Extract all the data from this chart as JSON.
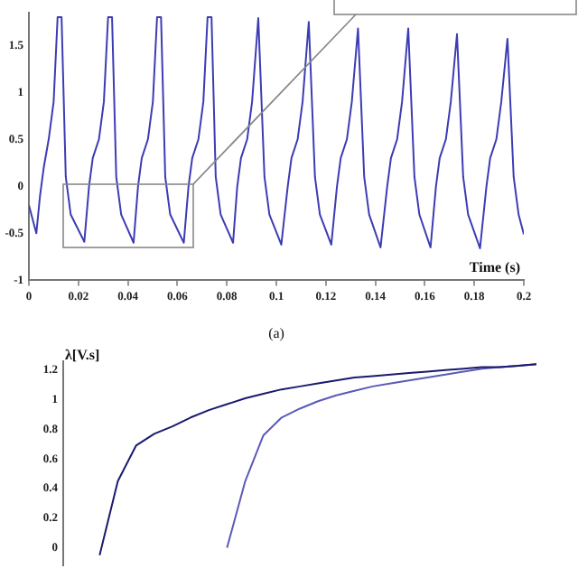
{
  "chart_data": [
    {
      "type": "line",
      "xlabel": "Time (s)",
      "annotations": [
        "(a)"
      ],
      "grid": false,
      "x": [
        0,
        0.003,
        0.0045,
        0.006,
        0.008,
        0.01,
        0.0116,
        0.0132,
        0.0149,
        0.0169,
        0.0224,
        0.0243,
        0.0258,
        0.0283,
        0.0303,
        0.032,
        0.0336,
        0.0353,
        0.0373,
        0.0423,
        0.0441,
        0.0456,
        0.0481,
        0.0501,
        0.0518,
        0.0534,
        0.0551,
        0.0571,
        0.0626,
        0.0645,
        0.066,
        0.0685,
        0.0705,
        0.0722,
        0.0738,
        0.0755,
        0.0775,
        0.0825,
        0.0842,
        0.0857,
        0.0882,
        0.0902,
        0.0927,
        0.0952,
        0.0972,
        0.102,
        0.1046,
        0.1061,
        0.1086,
        0.1106,
        0.1131,
        0.1156,
        0.1176,
        0.1222,
        0.1245,
        0.126,
        0.1285,
        0.1305,
        0.133,
        0.1355,
        0.1375,
        0.1421,
        0.1448,
        0.1463,
        0.1488,
        0.1508,
        0.1533,
        0.1558,
        0.1578,
        0.1623,
        0.1645,
        0.166,
        0.1685,
        0.1705,
        0.173,
        0.1755,
        0.1775,
        0.1823,
        0.1849,
        0.1864,
        0.1889,
        0.1909,
        0.1934,
        0.1959,
        0.1979,
        0.2
      ],
      "series": [
        {
          "color": "#3c3cb4",
          "values": [
            -0.2,
            -0.5,
            -0.1,
            0.2,
            0.5,
            0.9,
            1.8,
            1.8,
            0.1,
            -0.3,
            -0.59,
            0,
            0.3,
            0.5,
            0.9,
            1.8,
            1.8,
            0.1,
            -0.3,
            -0.6,
            0,
            0.3,
            0.5,
            0.9,
            1.8,
            1.8,
            0.1,
            -0.3,
            -0.6,
            0,
            0.3,
            0.5,
            0.9,
            1.8,
            1.8,
            0.1,
            -0.3,
            -0.6,
            0,
            0.3,
            0.5,
            0.9,
            1.79,
            0.1,
            -0.3,
            -0.62,
            0,
            0.3,
            0.5,
            0.9,
            1.75,
            0.1,
            -0.3,
            -0.62,
            0,
            0.3,
            0.5,
            0.9,
            1.68,
            0.1,
            -0.3,
            -0.65,
            0,
            0.3,
            0.5,
            0.9,
            1.68,
            0.1,
            -0.3,
            -0.65,
            0,
            0.3,
            0.5,
            0.9,
            1.62,
            0.1,
            -0.3,
            -0.66,
            0,
            0.3,
            0.5,
            0.9,
            1.57,
            0.1,
            -0.3,
            -0.51
          ]
        }
      ],
      "xlim": [
        0,
        0.2
      ],
      "xticks": [
        0,
        0.02,
        0.04,
        0.06,
        0.08,
        0.1,
        0.12,
        0.14,
        0.16,
        0.18,
        0.2
      ],
      "ylim": [
        -1,
        1.85
      ],
      "yticks": [
        -1,
        -0.5,
        0,
        0.5,
        1,
        1.5
      ]
    },
    {
      "type": "line",
      "ylabel": "λ[V.s]",
      "grid": false,
      "tick_labels": "y",
      "categories": [
        null,
        null,
        null,
        null,
        null,
        null,
        null,
        null,
        null,
        null,
        null,
        null,
        null,
        null,
        null,
        null,
        null,
        null,
        null,
        null,
        null,
        null,
        null,
        null,
        null,
        null,
        null
      ],
      "series": [
        {
          "color": "#1a1a6e",
          "values": [
            null,
            null,
            -0.05,
            0.45,
            0.69,
            0.77,
            0.82,
            0.88,
            0.93,
            0.97,
            1.01,
            1.04,
            1.07,
            1.09,
            1.11,
            1.13,
            1.15,
            1.16,
            1.17,
            1.18,
            1.19,
            1.2,
            1.21,
            1.22,
            1.22,
            1.23,
            1.24
          ]
        },
        {
          "color": "#5a5ab8",
          "values": [
            null,
            null,
            null,
            null,
            null,
            null,
            null,
            null,
            null,
            0,
            0.45,
            0.76,
            0.88,
            0.94,
            0.99,
            1.03,
            1.06,
            1.09,
            1.11,
            1.13,
            1.15,
            1.17,
            1.19,
            1.21,
            1.22,
            1.23,
            1.24
          ]
        }
      ],
      "ylim": [
        -0.12,
        1.26
      ],
      "yticks": [
        0,
        0.2,
        0.4,
        0.6,
        0.8,
        1,
        1.2
      ]
    }
  ]
}
